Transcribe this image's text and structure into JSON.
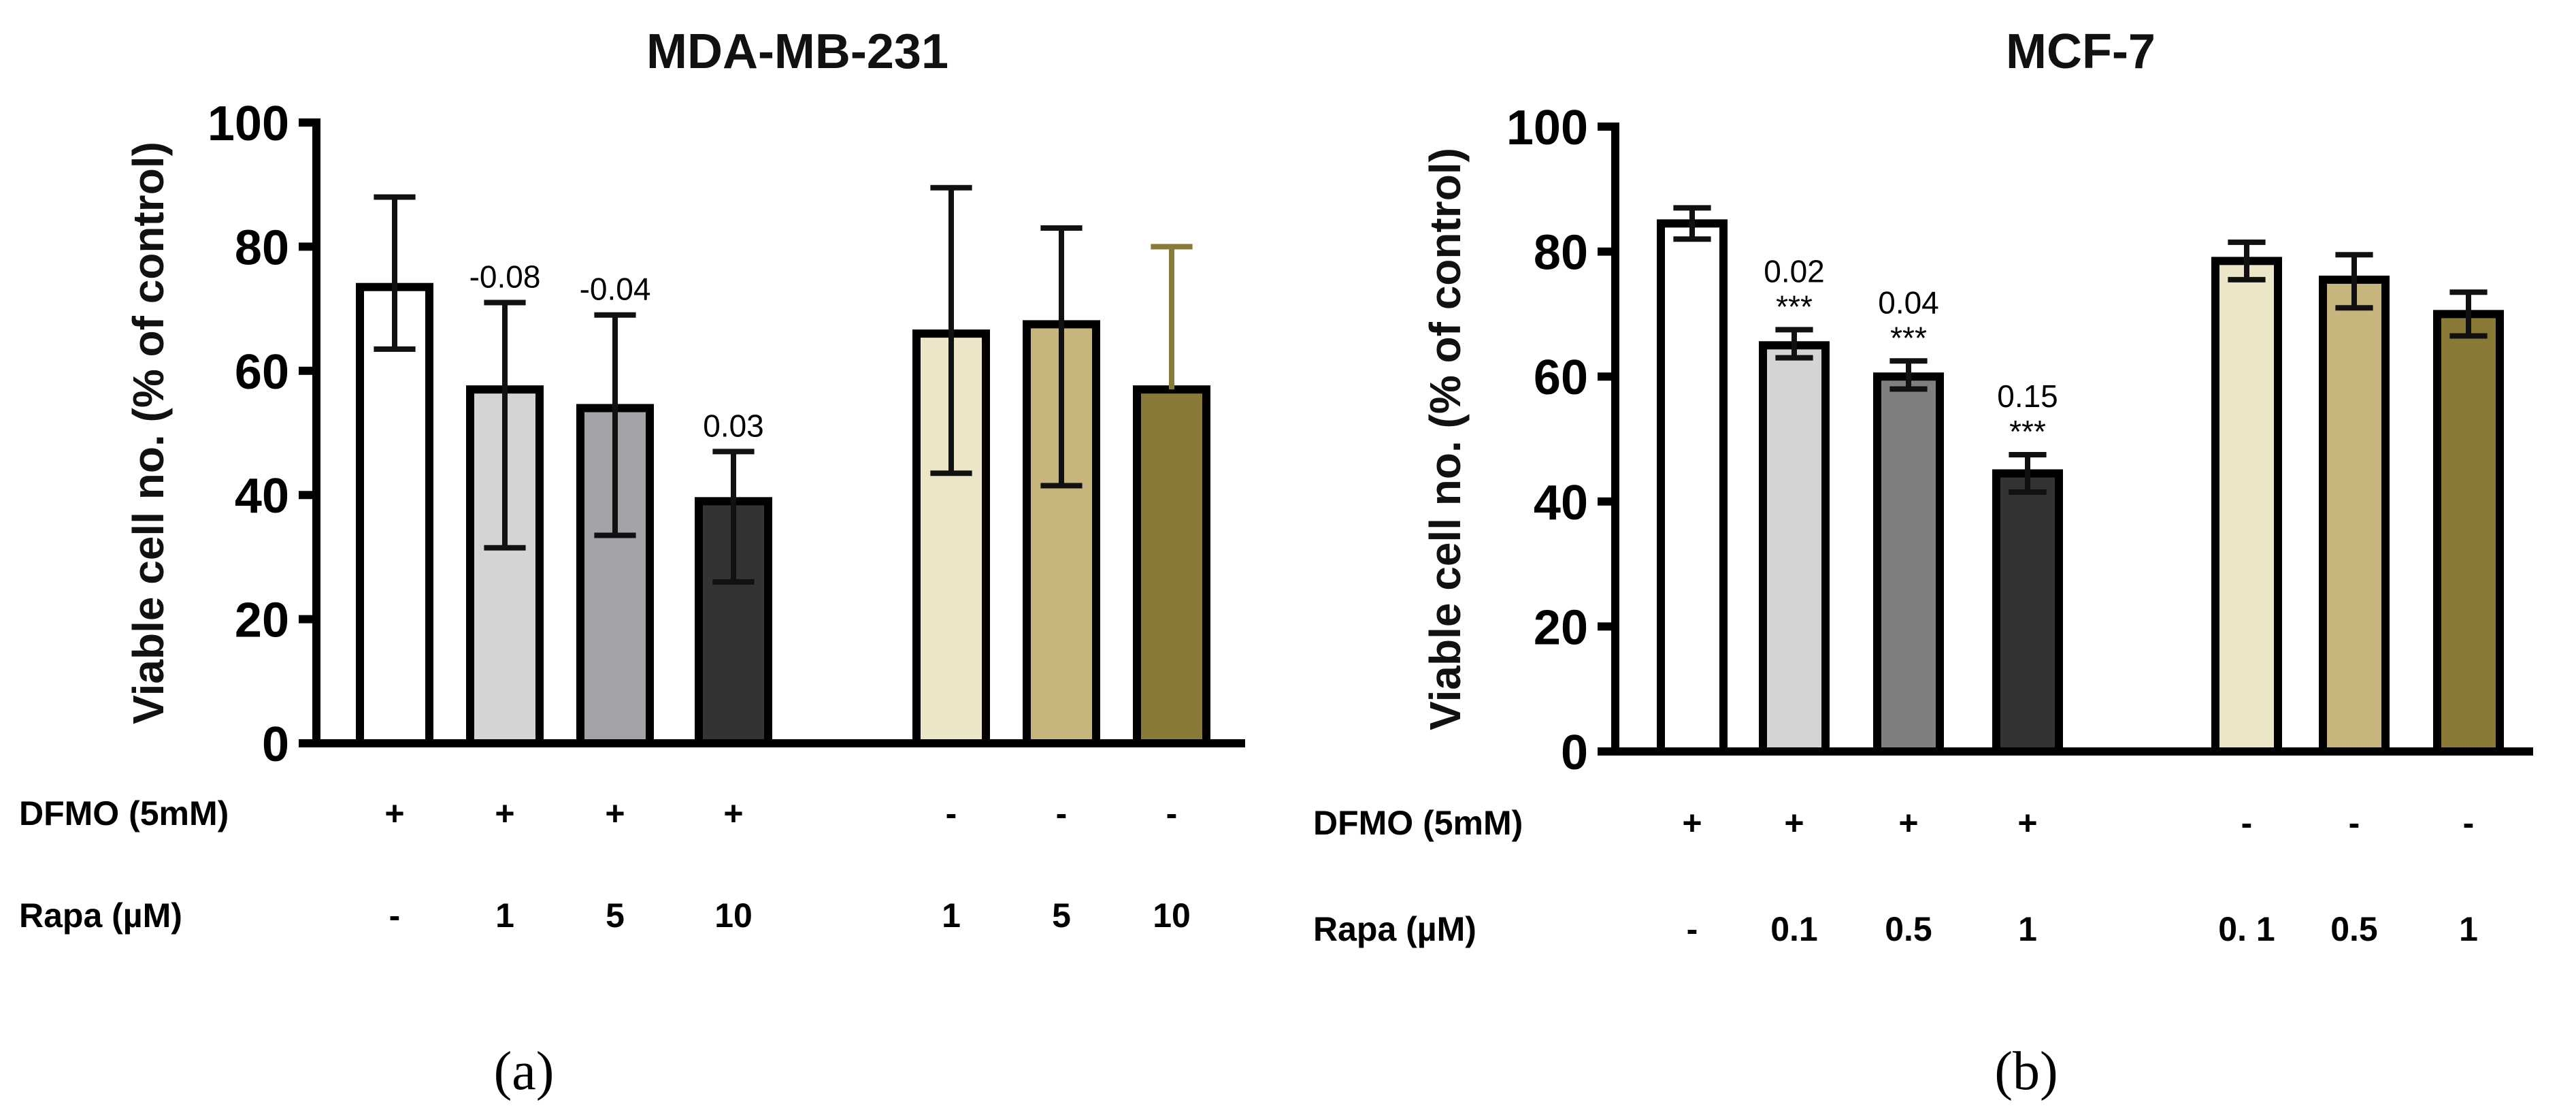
{
  "chart_data": [
    {
      "type": "bar",
      "panel_label": "(a)",
      "title": "MDA-MB-231",
      "xlabel": "",
      "ylabel": "Viable cell no. (% of control)",
      "ylim": [
        0,
        100
      ],
      "yticks": [
        "0",
        "20",
        "40",
        "60",
        "80",
        "100"
      ],
      "grid": false,
      "row_labels": [
        "DFMO (5mM)",
        "Rapa (µM)"
      ],
      "bars": [
        {
          "value": 73.5,
          "error_low": 63.5,
          "error_high": 88,
          "dfmo": "+",
          "rapa": "-",
          "annotation": "",
          "stars": "",
          "fill": "#ffffff",
          "error_color": "#111111"
        },
        {
          "value": 57,
          "error_low": 31.5,
          "error_high": 71,
          "dfmo": "+",
          "rapa": "1",
          "annotation": "-0.08",
          "stars": "",
          "fill": "#d4d4d4",
          "error_color": "#111111"
        },
        {
          "value": 54,
          "error_low": 33.5,
          "error_high": 69,
          "dfmo": "+",
          "rapa": "5",
          "annotation": "-0.04",
          "stars": "",
          "fill": "#a3a3a8",
          "error_color": "#111111"
        },
        {
          "value": 39,
          "error_low": 26,
          "error_high": 47,
          "dfmo": "+",
          "rapa": "10",
          "annotation": "0.03",
          "stars": "",
          "fill": "#333333",
          "error_color": "#111111"
        },
        {
          "value": 66,
          "error_low": 43.5,
          "error_high": 89.5,
          "dfmo": "-",
          "rapa": "1",
          "annotation": "",
          "stars": "",
          "fill": "#ede5c8",
          "error_color": "#111111"
        },
        {
          "value": 67.5,
          "error_low": 41.5,
          "error_high": 83,
          "dfmo": "-",
          "rapa": "5",
          "annotation": "",
          "stars": "",
          "fill": "#c6b57d",
          "error_color": "#111111"
        },
        {
          "value": 57,
          "error_low": 57,
          "error_high": 80,
          "dfmo": "-",
          "rapa": "10",
          "annotation": "",
          "stars": "",
          "fill": "#8a7a38",
          "error_color": "#8a7a38"
        }
      ]
    },
    {
      "type": "bar",
      "panel_label": "(b)",
      "title": "MCF-7",
      "xlabel": "",
      "ylabel": "Viable cell no. (% of control)",
      "ylim": [
        0,
        100
      ],
      "yticks": [
        "0",
        "20",
        "40",
        "60",
        "80",
        "100"
      ],
      "grid": false,
      "row_labels": [
        "DFMO (5mM)",
        "Rapa (µM)"
      ],
      "bars": [
        {
          "value": 84.5,
          "error_low": 82,
          "error_high": 87,
          "dfmo": "+",
          "rapa": "-",
          "annotation": "",
          "stars": "",
          "fill": "#ffffff",
          "error_color": "#111111"
        },
        {
          "value": 65,
          "error_low": 63,
          "error_high": 67.5,
          "dfmo": "+",
          "rapa": "0.1",
          "annotation": "0.02",
          "stars": "***",
          "fill": "#d4d4d4",
          "error_color": "#111111"
        },
        {
          "value": 60,
          "error_low": 58,
          "error_high": 62.5,
          "dfmo": "+",
          "rapa": "0.5",
          "annotation": "0.04",
          "stars": "***",
          "fill": "#7f7f7f",
          "error_color": "#111111"
        },
        {
          "value": 44.5,
          "error_low": 41.5,
          "error_high": 47.5,
          "dfmo": "+",
          "rapa": "1",
          "annotation": "0.15",
          "stars": "***",
          "fill": "#333333",
          "error_color": "#111111"
        },
        {
          "value": 78.5,
          "error_low": 75.5,
          "error_high": 81.5,
          "dfmo": "-",
          "rapa": "0. 1",
          "annotation": "",
          "stars": "",
          "fill": "#ede5c8",
          "error_color": "#111111"
        },
        {
          "value": 75.5,
          "error_low": 71,
          "error_high": 79.5,
          "dfmo": "-",
          "rapa": "0.5",
          "annotation": "",
          "stars": "",
          "fill": "#c6b57d",
          "error_color": "#111111"
        },
        {
          "value": 70,
          "error_low": 66.5,
          "error_high": 73.5,
          "dfmo": "-",
          "rapa": "1",
          "annotation": "",
          "stars": "",
          "fill": "#8a7a38",
          "error_color": "#111111"
        }
      ]
    }
  ]
}
